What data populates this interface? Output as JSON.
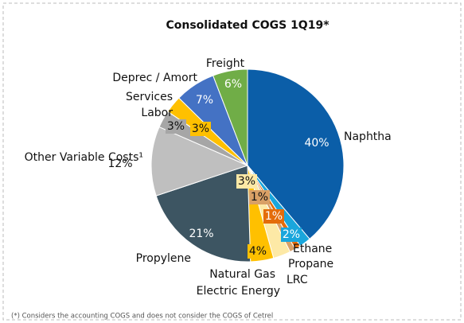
{
  "chart_data": {
    "type": "pie",
    "title": "Consolidated COGS 1Q19*",
    "categories": [
      "Naphtha",
      "Ethane",
      "Propane",
      "LRC",
      "Electric Energy",
      "Natural Gas",
      "Propylene",
      "Other Variable Costs¹",
      "Services",
      "Labor",
      "Deprec / Amort",
      "Freight"
    ],
    "values": [
      40,
      2,
      1,
      1,
      3,
      4,
      21,
      12,
      3,
      3,
      7,
      6
    ],
    "value_labels": [
      "40%",
      "2%",
      "1%",
      "1%",
      "3%",
      "4%",
      "21%",
      "12%",
      "3%",
      "3%",
      "7%",
      "6%"
    ],
    "colors": [
      "#0b5ea8",
      "#1aa6dc",
      "#e46c0a",
      "#d9a066",
      "#fde9a6",
      "#ffc000",
      "#3d5562",
      "#bfbfbf",
      "#a6a6a6",
      "#ffc000",
      "#4472c4",
      "#70ad47"
    ],
    "footnote": "(*) Considers the accounting COGS and does not consider the COGS of Cetrel"
  }
}
